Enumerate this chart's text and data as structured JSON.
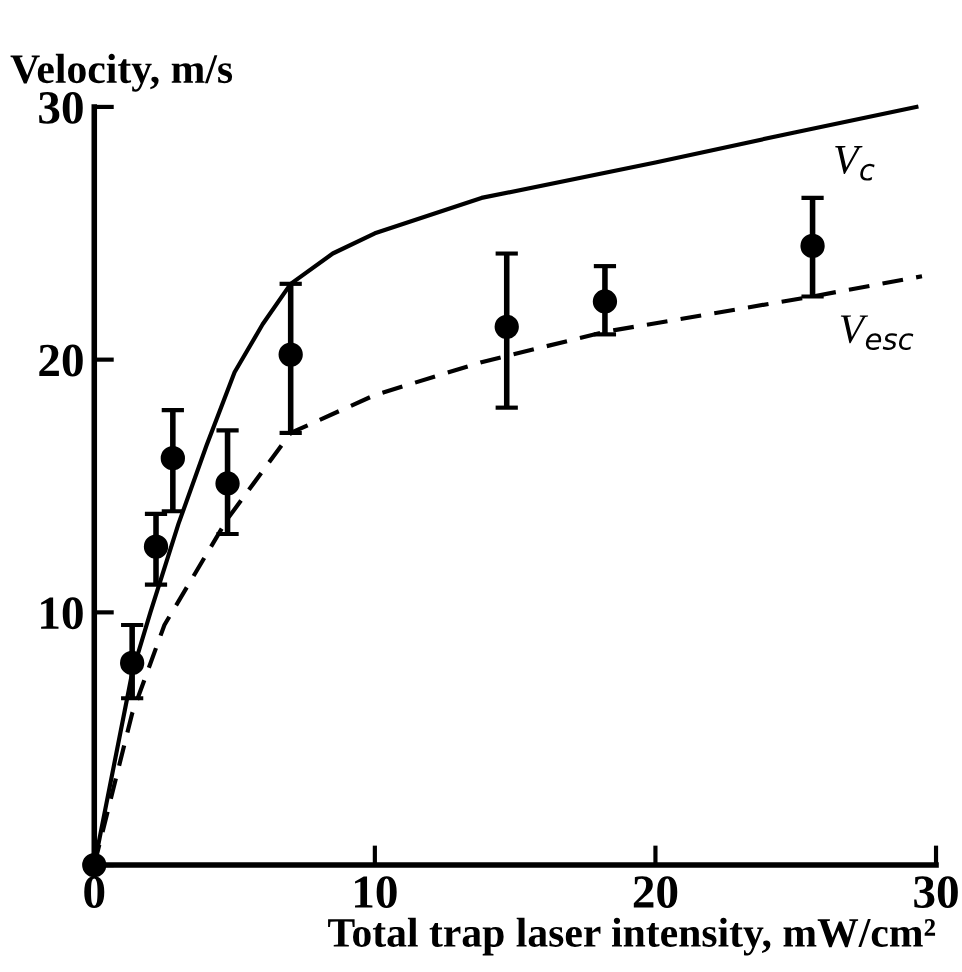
{
  "chart_data": {
    "type": "line",
    "xlabel": "Total trap laser intensity, mW/cm²",
    "ylabel": "Velocity, m/s",
    "xlim": [
      0,
      30
    ],
    "ylim": [
      0,
      30
    ],
    "xticks": [
      0,
      10,
      20,
      30
    ],
    "yticks": [
      {
        "value": 0,
        "label": null
      },
      10,
      20,
      30
    ],
    "grid": false,
    "legend": false,
    "series": [
      {
        "name": "V$_{c}$",
        "color": "#000000",
        "line_style": "solid",
        "marker": "none",
        "x": [
          0,
          1.35,
          2,
          3,
          4,
          5,
          6,
          7,
          8.5,
          10,
          13.8,
          20,
          25,
          29.3
        ],
        "values": [
          0,
          7.6,
          10,
          13.5,
          16.6,
          19.5,
          21.4,
          23,
          24.2,
          25,
          26.4,
          27.8,
          29,
          30
        ]
      },
      {
        "name": "V$_{esc}$",
        "color": "#000000",
        "line_style": "dashed",
        "marker": "none",
        "x": [
          0,
          1.35,
          2.5,
          4.75,
          7,
          10,
          13.8,
          18.2,
          25.6,
          29.5
        ],
        "values": [
          0,
          6,
          9.5,
          13.7,
          17.1,
          18.6,
          19.9,
          21.1,
          22.5,
          23.3
        ]
      },
      {
        "type": "scatter",
        "color": "#000000",
        "marker": "circle",
        "x": [
          0,
          1.35,
          2.2,
          2.8,
          4.75,
          7,
          14.7,
          18.2,
          25.6
        ],
        "values": [
          0,
          8,
          12.6,
          16.1,
          15.1,
          20.2,
          21.3,
          22.3,
          24.5
        ],
        "errors": [
          null,
          [
            6.6,
            9.5
          ],
          [
            11.1,
            13.9
          ],
          [
            14,
            18
          ],
          [
            13.1,
            17.2
          ],
          [
            17.1,
            23
          ],
          [
            18.1,
            24.2
          ],
          [
            21,
            23.7
          ],
          [
            22.5,
            26.4
          ]
        ]
      }
    ]
  }
}
